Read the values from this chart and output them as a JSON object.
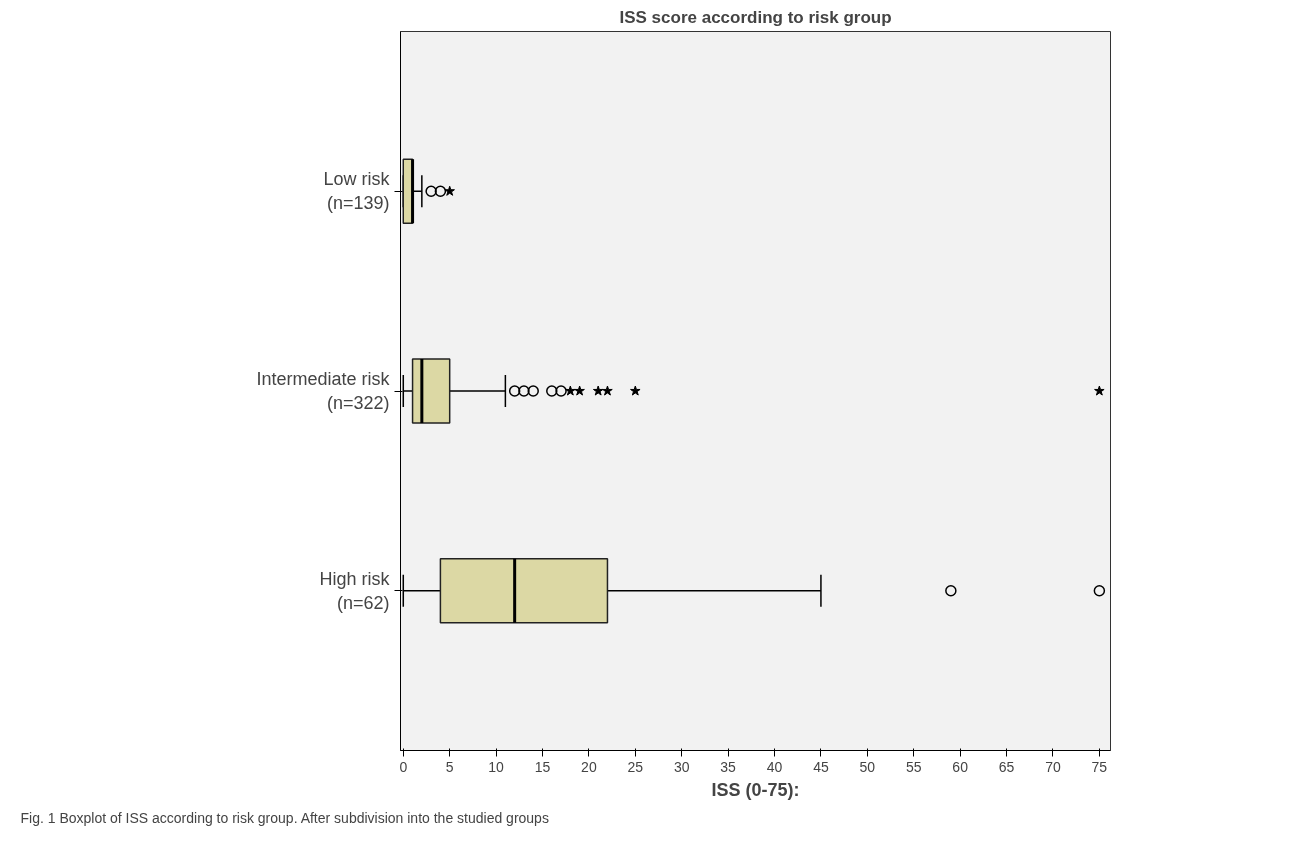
{
  "chart_data": {
    "type": "box",
    "orientation": "horizontal",
    "title": "ISS score according to risk group",
    "xlabel": "ISS (0-75):",
    "categories": [
      "Low risk\n(n=139)",
      "Intermediate risk\n(n=322)",
      "High risk\n(n=62)"
    ],
    "series": [
      {
        "color": "#dcd8a4",
        "boxes": [
          {
            "low": 0,
            "q1": 0,
            "median": 1,
            "q3": 1,
            "high": 2,
            "outliers": [
              3,
              4
            ]
          },
          {
            "low": 0,
            "q1": 1,
            "median": 2,
            "q3": 5,
            "high": 11,
            "outliers": [
              12,
              13,
              14,
              16,
              17
            ]
          },
          {
            "low": 0,
            "q1": 4,
            "median": 12,
            "q3": 22,
            "high": 45,
            "outliers": [
              59,
              75
            ]
          }
        ]
      },
      {
        "type": "scatter",
        "marker": "star",
        "color": "#000000",
        "x": [
          "Low risk\n(n=139)",
          "Intermediate risk\n(n=322)",
          "Intermediate risk\n(n=322)",
          "Intermediate risk\n(n=322)",
          "Intermediate risk\n(n=322)",
          "Intermediate risk\n(n=322)",
          "Intermediate risk\n(n=322)"
        ],
        "values": [
          5,
          18,
          19,
          21,
          22,
          25,
          75
        ]
      }
    ],
    "xlim": [
      -0.3,
      76.2
    ],
    "xticks": [
      0,
      5,
      10,
      15,
      20,
      25,
      30,
      35,
      40,
      45,
      50,
      55,
      60,
      65,
      70,
      75
    ],
    "grid": false,
    "annotations": [
      "Fig. 1 Boxplot of ISS according to risk group. After subdivision into the studied groups"
    ]
  }
}
